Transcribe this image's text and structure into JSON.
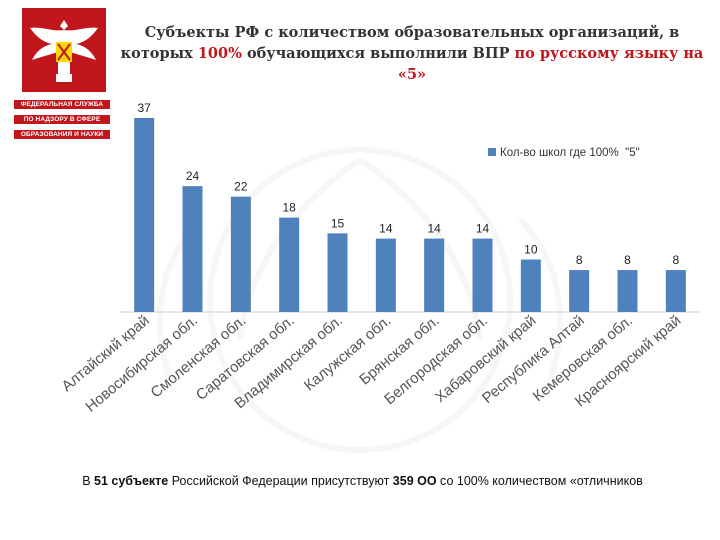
{
  "agency": {
    "line1": "ФЕДЕРАЛЬНАЯ СЛУЖБА",
    "line2": "ПО НАДЗОРУ В СФЕРЕ",
    "line3": "ОБРАЗОВАНИЯ И НАУКИ"
  },
  "title": {
    "part1": "Субъекты РФ с количеством образовательных организаций, в которых ",
    "pct": "100%",
    "part2": " обучающихся выполнили ВПР ",
    "subject": "по русскому языку на «5»"
  },
  "footnote": {
    "prefix": "В ",
    "count_regions": "51 субъекте",
    "middle": " Российской Федерации присутствуют ",
    "count_orgs": "359 ОО",
    "suffix": " со 100% количеством «отличников"
  },
  "colors": {
    "bar": "#4f81bd",
    "accent": "#c0161c"
  },
  "chart_data": {
    "type": "bar",
    "title": "",
    "xlabel": "",
    "ylabel": "",
    "categories": [
      "Алтайский край",
      "Новосибирская обл.",
      "Смоленская обл.",
      "Саратовская обл.",
      "Владимирская обл.",
      "Калужская обл.",
      "Брянская обл.",
      "Белгородская обл.",
      "Хабаровский край",
      "Республика Алтай",
      "Кемеровская обл.",
      "Красноярский край"
    ],
    "series": [
      {
        "name": "Кол-во школ где 100%  \"5\"",
        "values": [
          37,
          24,
          22,
          18,
          15,
          14,
          14,
          14,
          10,
          8,
          8,
          8
        ]
      }
    ],
    "ylim": [
      0,
      37
    ],
    "grid": false,
    "legend": "top-right",
    "data_labels": true
  }
}
